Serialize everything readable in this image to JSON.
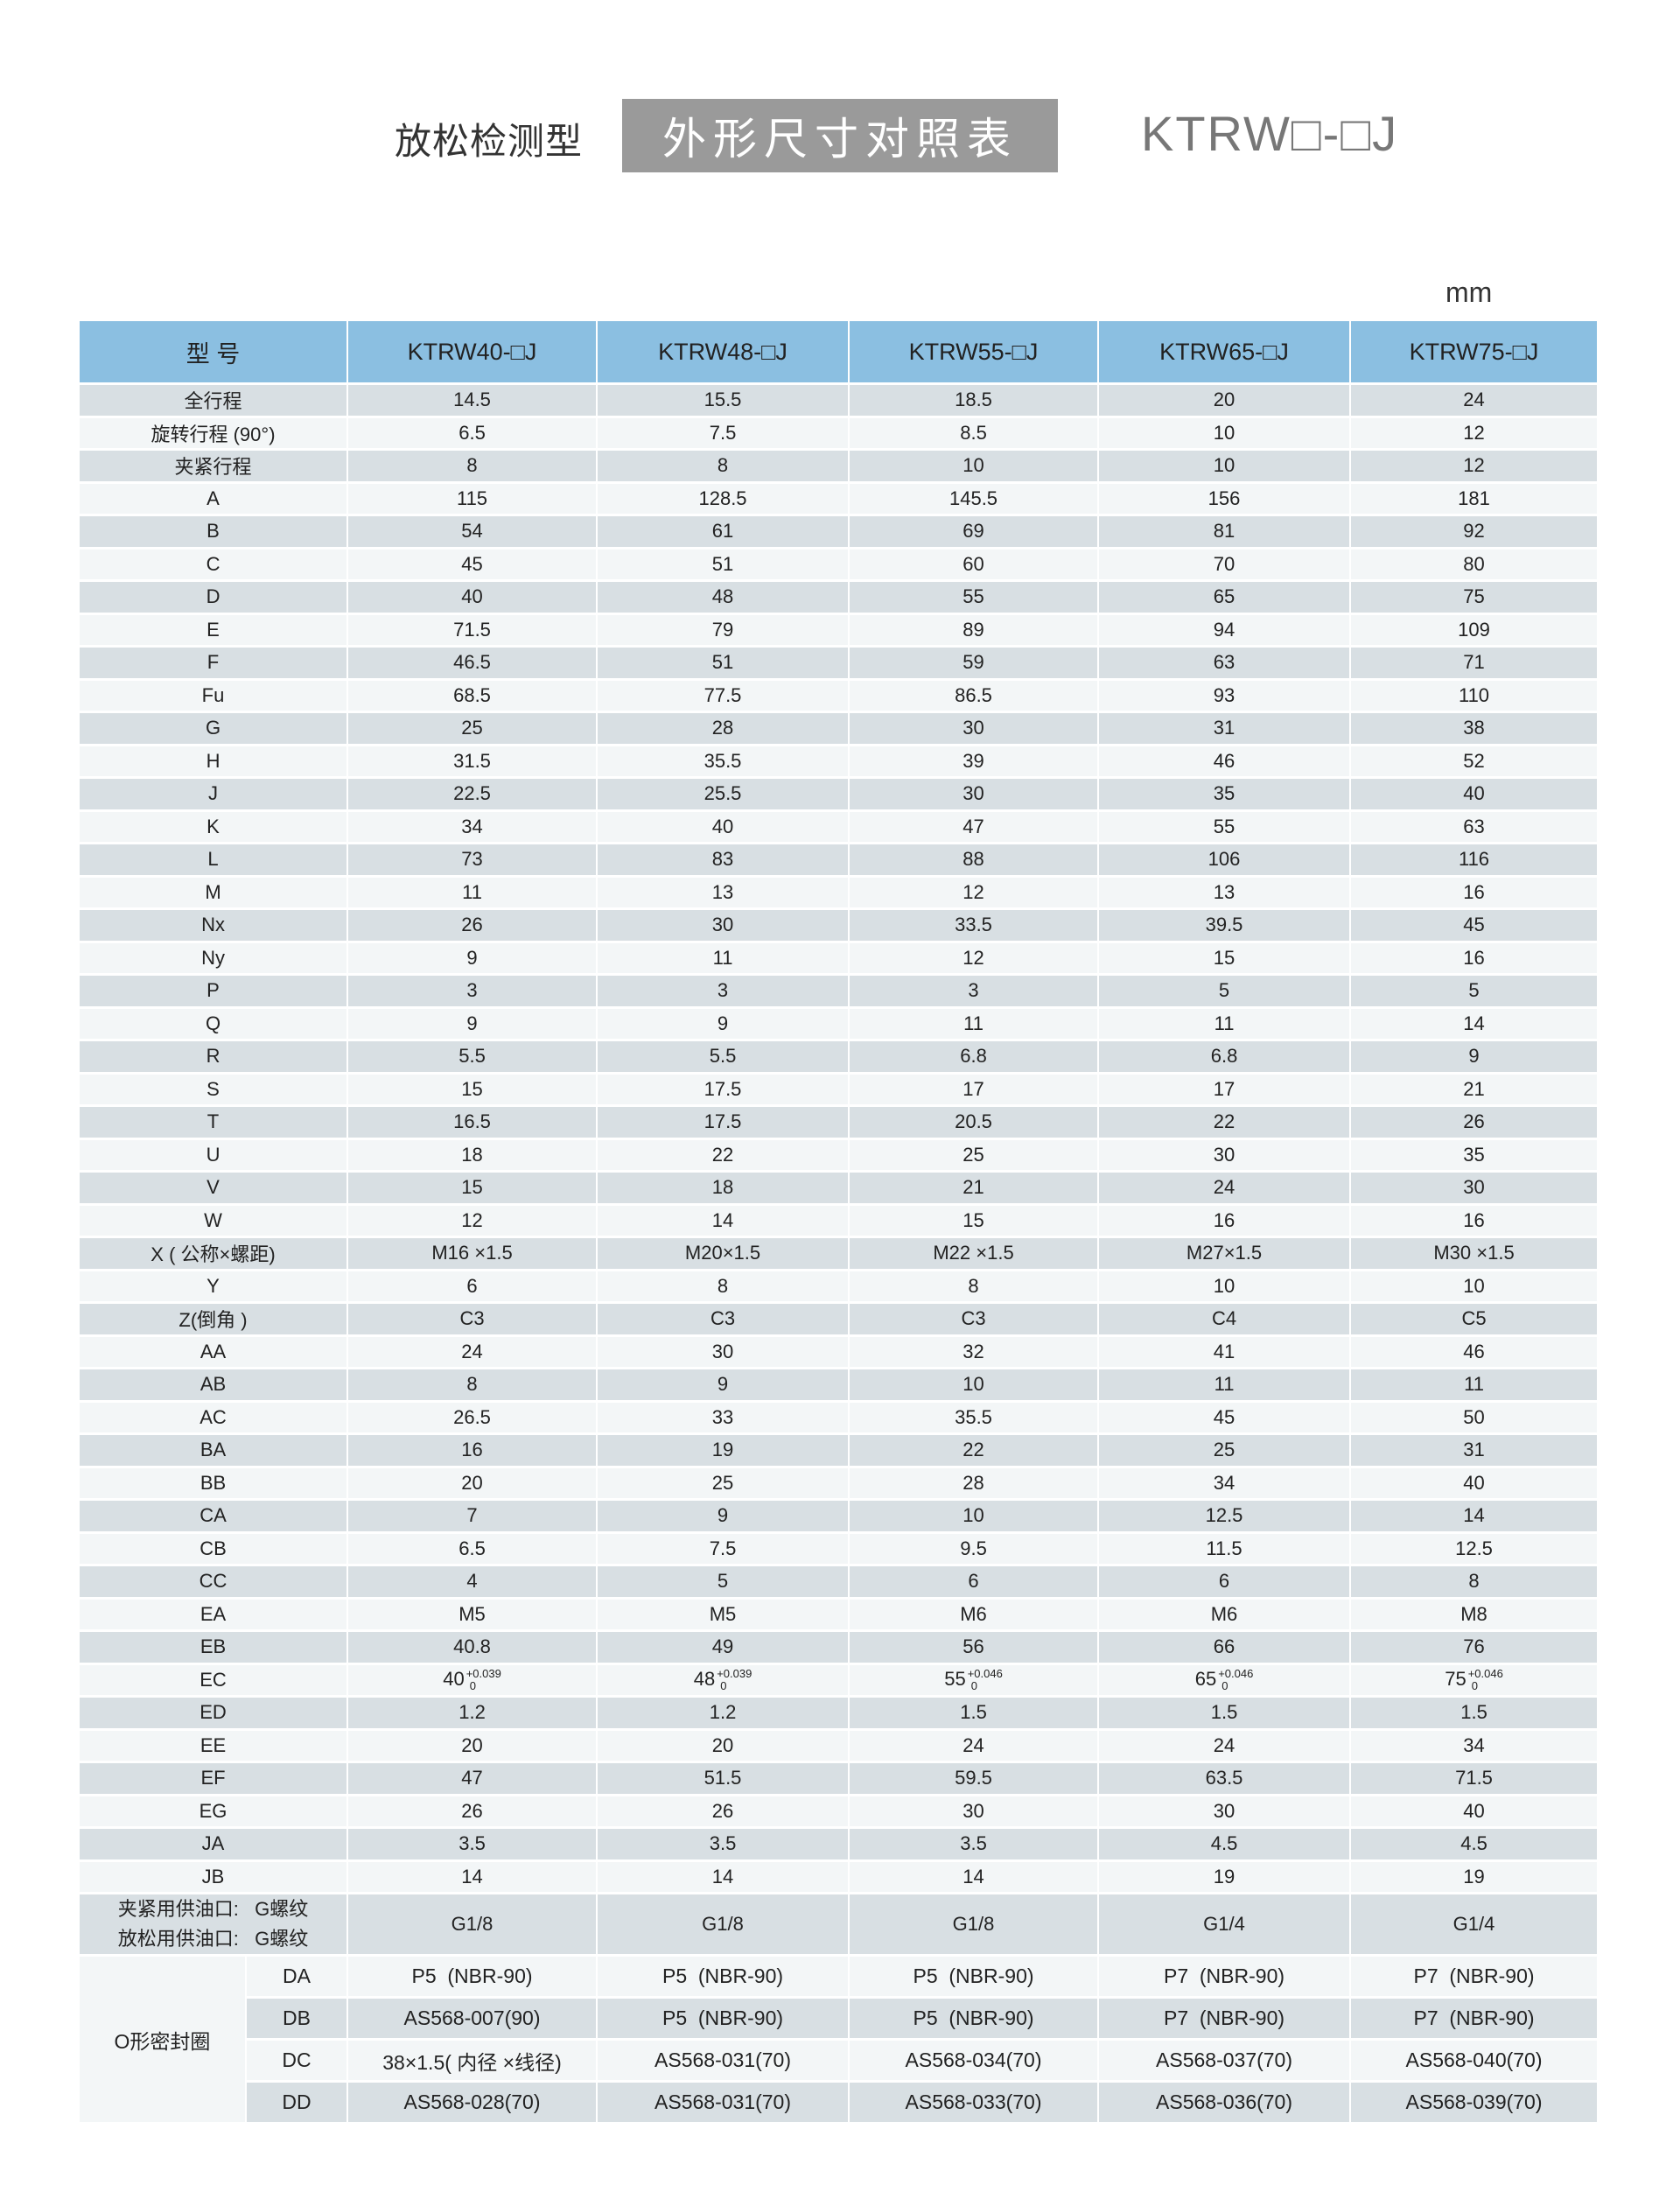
{
  "header": {
    "subtitle": "放松检测型",
    "title": "外形尺寸对照表",
    "model": "KTRW□-□J",
    "unit": "mm"
  },
  "colors": {
    "header_bg": "#8bbfe1",
    "row_dark": "#d8dfe3",
    "row_light": "#f3f6f7",
    "title_box": "#9a9a9a"
  },
  "table": {
    "corner": "型 号",
    "columns": [
      "KTRW40-□J",
      "KTRW48-□J",
      "KTRW55-□J",
      "KTRW65-□J",
      "KTRW75-□J"
    ],
    "rows": [
      {
        "label": "全行程",
        "values": [
          "14.5",
          "15.5",
          "18.5",
          "20",
          "24"
        ]
      },
      {
        "label": "旋转行程 (90°)",
        "values": [
          "6.5",
          "7.5",
          "8.5",
          "10",
          "12"
        ]
      },
      {
        "label": "夹紧行程",
        "values": [
          "8",
          "8",
          "10",
          "10",
          "12"
        ]
      },
      {
        "label": "A",
        "values": [
          "115",
          "128.5",
          "145.5",
          "156",
          "181"
        ]
      },
      {
        "label": "B",
        "values": [
          "54",
          "61",
          "69",
          "81",
          "92"
        ]
      },
      {
        "label": "C",
        "values": [
          "45",
          "51",
          "60",
          "70",
          "80"
        ]
      },
      {
        "label": "D",
        "values": [
          "40",
          "48",
          "55",
          "65",
          "75"
        ]
      },
      {
        "label": "E",
        "values": [
          "71.5",
          "79",
          "89",
          "94",
          "109"
        ]
      },
      {
        "label": "F",
        "values": [
          "46.5",
          "51",
          "59",
          "63",
          "71"
        ]
      },
      {
        "label": "Fu",
        "values": [
          "68.5",
          "77.5",
          "86.5",
          "93",
          "110"
        ]
      },
      {
        "label": "G",
        "values": [
          "25",
          "28",
          "30",
          "31",
          "38"
        ]
      },
      {
        "label": "H",
        "values": [
          "31.5",
          "35.5",
          "39",
          "46",
          "52"
        ]
      },
      {
        "label": "J",
        "values": [
          "22.5",
          "25.5",
          "30",
          "35",
          "40"
        ]
      },
      {
        "label": "K",
        "values": [
          "34",
          "40",
          "47",
          "55",
          "63"
        ]
      },
      {
        "label": "L",
        "values": [
          "73",
          "83",
          "88",
          "106",
          "116"
        ]
      },
      {
        "label": "M",
        "values": [
          "11",
          "13",
          "12",
          "13",
          "16"
        ]
      },
      {
        "label": "Nx",
        "values": [
          "26",
          "30",
          "33.5",
          "39.5",
          "45"
        ]
      },
      {
        "label": "Ny",
        "values": [
          "9",
          "11",
          "12",
          "15",
          "16"
        ]
      },
      {
        "label": "P",
        "values": [
          "3",
          "3",
          "3",
          "5",
          "5"
        ]
      },
      {
        "label": "Q",
        "values": [
          "9",
          "9",
          "11",
          "11",
          "14"
        ]
      },
      {
        "label": "R",
        "values": [
          "5.5",
          "5.5",
          "6.8",
          "6.8",
          "9"
        ]
      },
      {
        "label": "S",
        "values": [
          "15",
          "17.5",
          "17",
          "17",
          "21"
        ]
      },
      {
        "label": "T",
        "values": [
          "16.5",
          "17.5",
          "20.5",
          "22",
          "26"
        ]
      },
      {
        "label": "U",
        "values": [
          "18",
          "22",
          "25",
          "30",
          "35"
        ]
      },
      {
        "label": "V",
        "values": [
          "15",
          "18",
          "21",
          "24",
          "30"
        ]
      },
      {
        "label": "W",
        "values": [
          "12",
          "14",
          "15",
          "16",
          "16"
        ]
      },
      {
        "label": "X ( 公称×螺距)",
        "values": [
          "M16 ×1.5",
          "M20×1.5",
          "M22 ×1.5",
          "M27×1.5",
          "M30 ×1.5"
        ]
      },
      {
        "label": "Y",
        "values": [
          "6",
          "8",
          "8",
          "10",
          "10"
        ]
      },
      {
        "label": "Z(倒角 )",
        "values": [
          "C3",
          "C3",
          "C3",
          "C4",
          "C5"
        ]
      },
      {
        "label": "AA",
        "values": [
          "24",
          "30",
          "32",
          "41",
          "46"
        ]
      },
      {
        "label": "AB",
        "values": [
          "8",
          "9",
          "10",
          "11",
          "11"
        ]
      },
      {
        "label": "AC",
        "values": [
          "26.5",
          "33",
          "35.5",
          "45",
          "50"
        ]
      },
      {
        "label": "BA",
        "values": [
          "16",
          "19",
          "22",
          "25",
          "31"
        ]
      },
      {
        "label": "BB",
        "values": [
          "20",
          "25",
          "28",
          "34",
          "40"
        ]
      },
      {
        "label": "CA",
        "values": [
          "7",
          "9",
          "10",
          "12.5",
          "14"
        ]
      },
      {
        "label": "CB",
        "values": [
          "6.5",
          "7.5",
          "9.5",
          "11.5",
          "12.5"
        ]
      },
      {
        "label": "CC",
        "values": [
          "4",
          "5",
          "6",
          "6",
          "8"
        ]
      },
      {
        "label": "EA",
        "values": [
          "M5",
          "M5",
          "M6",
          "M6",
          "M8"
        ]
      },
      {
        "label": "EB",
        "values": [
          "40.8",
          "49",
          "56",
          "66",
          "76"
        ]
      },
      {
        "label": "EC",
        "values": [
          {
            "base": "40",
            "upper": "+0.039",
            "lower": "0"
          },
          {
            "base": "48",
            "upper": "+0.039",
            "lower": "0"
          },
          {
            "base": "55",
            "upper": "+0.046",
            "lower": "0"
          },
          {
            "base": "65",
            "upper": "+0.046",
            "lower": "0"
          },
          {
            "base": "75",
            "upper": "+0.046",
            "lower": "0"
          }
        ]
      },
      {
        "label": "ED",
        "values": [
          "1.2",
          "1.2",
          "1.5",
          "1.5",
          "1.5"
        ]
      },
      {
        "label": "EE",
        "values": [
          "20",
          "20",
          "24",
          "24",
          "34"
        ]
      },
      {
        "label": "EF",
        "values": [
          "47",
          "51.5",
          "59.5",
          "63.5",
          "71.5"
        ]
      },
      {
        "label": "EG",
        "values": [
          "26",
          "26",
          "30",
          "30",
          "40"
        ]
      },
      {
        "label": "JA",
        "values": [
          "3.5",
          "3.5",
          "3.5",
          "4.5",
          "4.5"
        ]
      },
      {
        "label": "JB",
        "values": [
          "14",
          "14",
          "14",
          "19",
          "19"
        ]
      }
    ],
    "oil_port": {
      "label_lines": [
        "夹紧用供油口:   G螺纹",
        "放松用供油口:   G螺纹"
      ],
      "values": [
        "G1/8",
        "G1/8",
        "G1/8",
        "G1/4",
        "G1/4"
      ]
    },
    "oring": {
      "label": "O形密封圈",
      "rows": [
        {
          "code": "DA",
          "values": [
            "P5  (NBR-90)",
            "P5  (NBR-90)",
            "P5  (NBR-90)",
            "P7  (NBR-90)",
            "P7  (NBR-90)"
          ]
        },
        {
          "code": "DB",
          "values": [
            "AS568-007(90)",
            "P5  (NBR-90)",
            "P5  (NBR-90)",
            "P7  (NBR-90)",
            "P7  (NBR-90)"
          ]
        },
        {
          "code": "DC",
          "values": [
            "38×1.5( 内径 ×线径)",
            "AS568-031(70)",
            "AS568-034(70)",
            "AS568-037(70)",
            "AS568-040(70)"
          ]
        },
        {
          "code": "DD",
          "values": [
            "AS568-028(70)",
            "AS568-031(70)",
            "AS568-033(70)",
            "AS568-036(70)",
            "AS568-039(70)"
          ]
        }
      ]
    }
  }
}
